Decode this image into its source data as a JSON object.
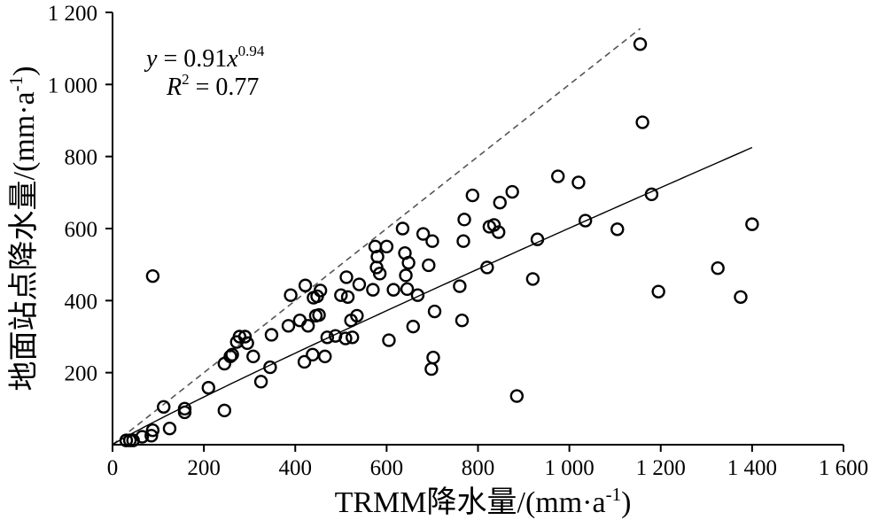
{
  "chart_data": {
    "type": "scatter",
    "xlabel_prefix": "TRMM降水量/(mm·a",
    "xlabel_sup": "-1",
    "xlabel_suffix": ")",
    "ylabel_prefix": "地面站点降水量/(mm·a",
    "ylabel_sup": "-1",
    "ylabel_suffix": ")",
    "xlim": [
      0,
      1600
    ],
    "ylim": [
      0,
      1200
    ],
    "xticks": [
      0,
      200,
      400,
      600,
      800,
      1000,
      1200,
      1400,
      1600
    ],
    "xtick_labels": [
      "0",
      "200",
      "400",
      "600",
      "800",
      "1 000",
      "1 200",
      "1 400",
      "1 600"
    ],
    "yticks": [
      200,
      400,
      600,
      800,
      1000,
      1200
    ],
    "ytick_labels": [
      "200",
      "400",
      "600",
      "800",
      "1 000",
      "1 200"
    ],
    "grid": false,
    "annotation": {
      "eq_y": "y",
      "eq_mid": " = 0.91",
      "eq_x": "x",
      "eq_exp": "0.94",
      "r2_R": "R",
      "r2_sup": "2",
      "r2_val": " = 0.77"
    },
    "fit": {
      "a": 0.91,
      "b": 0.94,
      "x_range": [
        0,
        1400
      ]
    },
    "one_to_one_line": {
      "x_range": [
        0,
        1155
      ]
    },
    "points": [
      [
        30,
        12
      ],
      [
        38,
        12
      ],
      [
        45,
        12
      ],
      [
        65,
        22
      ],
      [
        85,
        25
      ],
      [
        88,
        40
      ],
      [
        112,
        105
      ],
      [
        88,
        468
      ],
      [
        125,
        45
      ],
      [
        158,
        90
      ],
      [
        158,
        100
      ],
      [
        210,
        158
      ],
      [
        245,
        95
      ],
      [
        245,
        225
      ],
      [
        258,
        245
      ],
      [
        262,
        250
      ],
      [
        272,
        285
      ],
      [
        278,
        300
      ],
      [
        290,
        300
      ],
      [
        295,
        282
      ],
      [
        308,
        245
      ],
      [
        325,
        175
      ],
      [
        345,
        215
      ],
      [
        348,
        305
      ],
      [
        385,
        330
      ],
      [
        390,
        415
      ],
      [
        410,
        345
      ],
      [
        420,
        230
      ],
      [
        422,
        442
      ],
      [
        428,
        330
      ],
      [
        438,
        250
      ],
      [
        440,
        408
      ],
      [
        445,
        358
      ],
      [
        448,
        412
      ],
      [
        452,
        360
      ],
      [
        455,
        428
      ],
      [
        465,
        245
      ],
      [
        470,
        298
      ],
      [
        488,
        302
      ],
      [
        500,
        415
      ],
      [
        510,
        295
      ],
      [
        512,
        465
      ],
      [
        515,
        410
      ],
      [
        522,
        345
      ],
      [
        525,
        298
      ],
      [
        535,
        358
      ],
      [
        540,
        445
      ],
      [
        570,
        430
      ],
      [
        575,
        550
      ],
      [
        578,
        492
      ],
      [
        580,
        522
      ],
      [
        585,
        475
      ],
      [
        600,
        550
      ],
      [
        605,
        290
      ],
      [
        615,
        430
      ],
      [
        635,
        600
      ],
      [
        640,
        532
      ],
      [
        642,
        470
      ],
      [
        645,
        432
      ],
      [
        648,
        505
      ],
      [
        658,
        328
      ],
      [
        668,
        415
      ],
      [
        680,
        585
      ],
      [
        692,
        498
      ],
      [
        698,
        210
      ],
      [
        700,
        565
      ],
      [
        702,
        242
      ],
      [
        705,
        370
      ],
      [
        760,
        440
      ],
      [
        765,
        345
      ],
      [
        768,
        565
      ],
      [
        770,
        625
      ],
      [
        788,
        692
      ],
      [
        820,
        492
      ],
      [
        825,
        605
      ],
      [
        835,
        610
      ],
      [
        845,
        590
      ],
      [
        848,
        672
      ],
      [
        875,
        702
      ],
      [
        885,
        135
      ],
      [
        920,
        460
      ],
      [
        930,
        570
      ],
      [
        975,
        745
      ],
      [
        1020,
        728
      ],
      [
        1035,
        622
      ],
      [
        1105,
        598
      ],
      [
        1155,
        1112
      ],
      [
        1160,
        895
      ],
      [
        1180,
        695
      ],
      [
        1195,
        425
      ],
      [
        1325,
        490
      ],
      [
        1375,
        410
      ],
      [
        1400,
        612
      ]
    ]
  }
}
